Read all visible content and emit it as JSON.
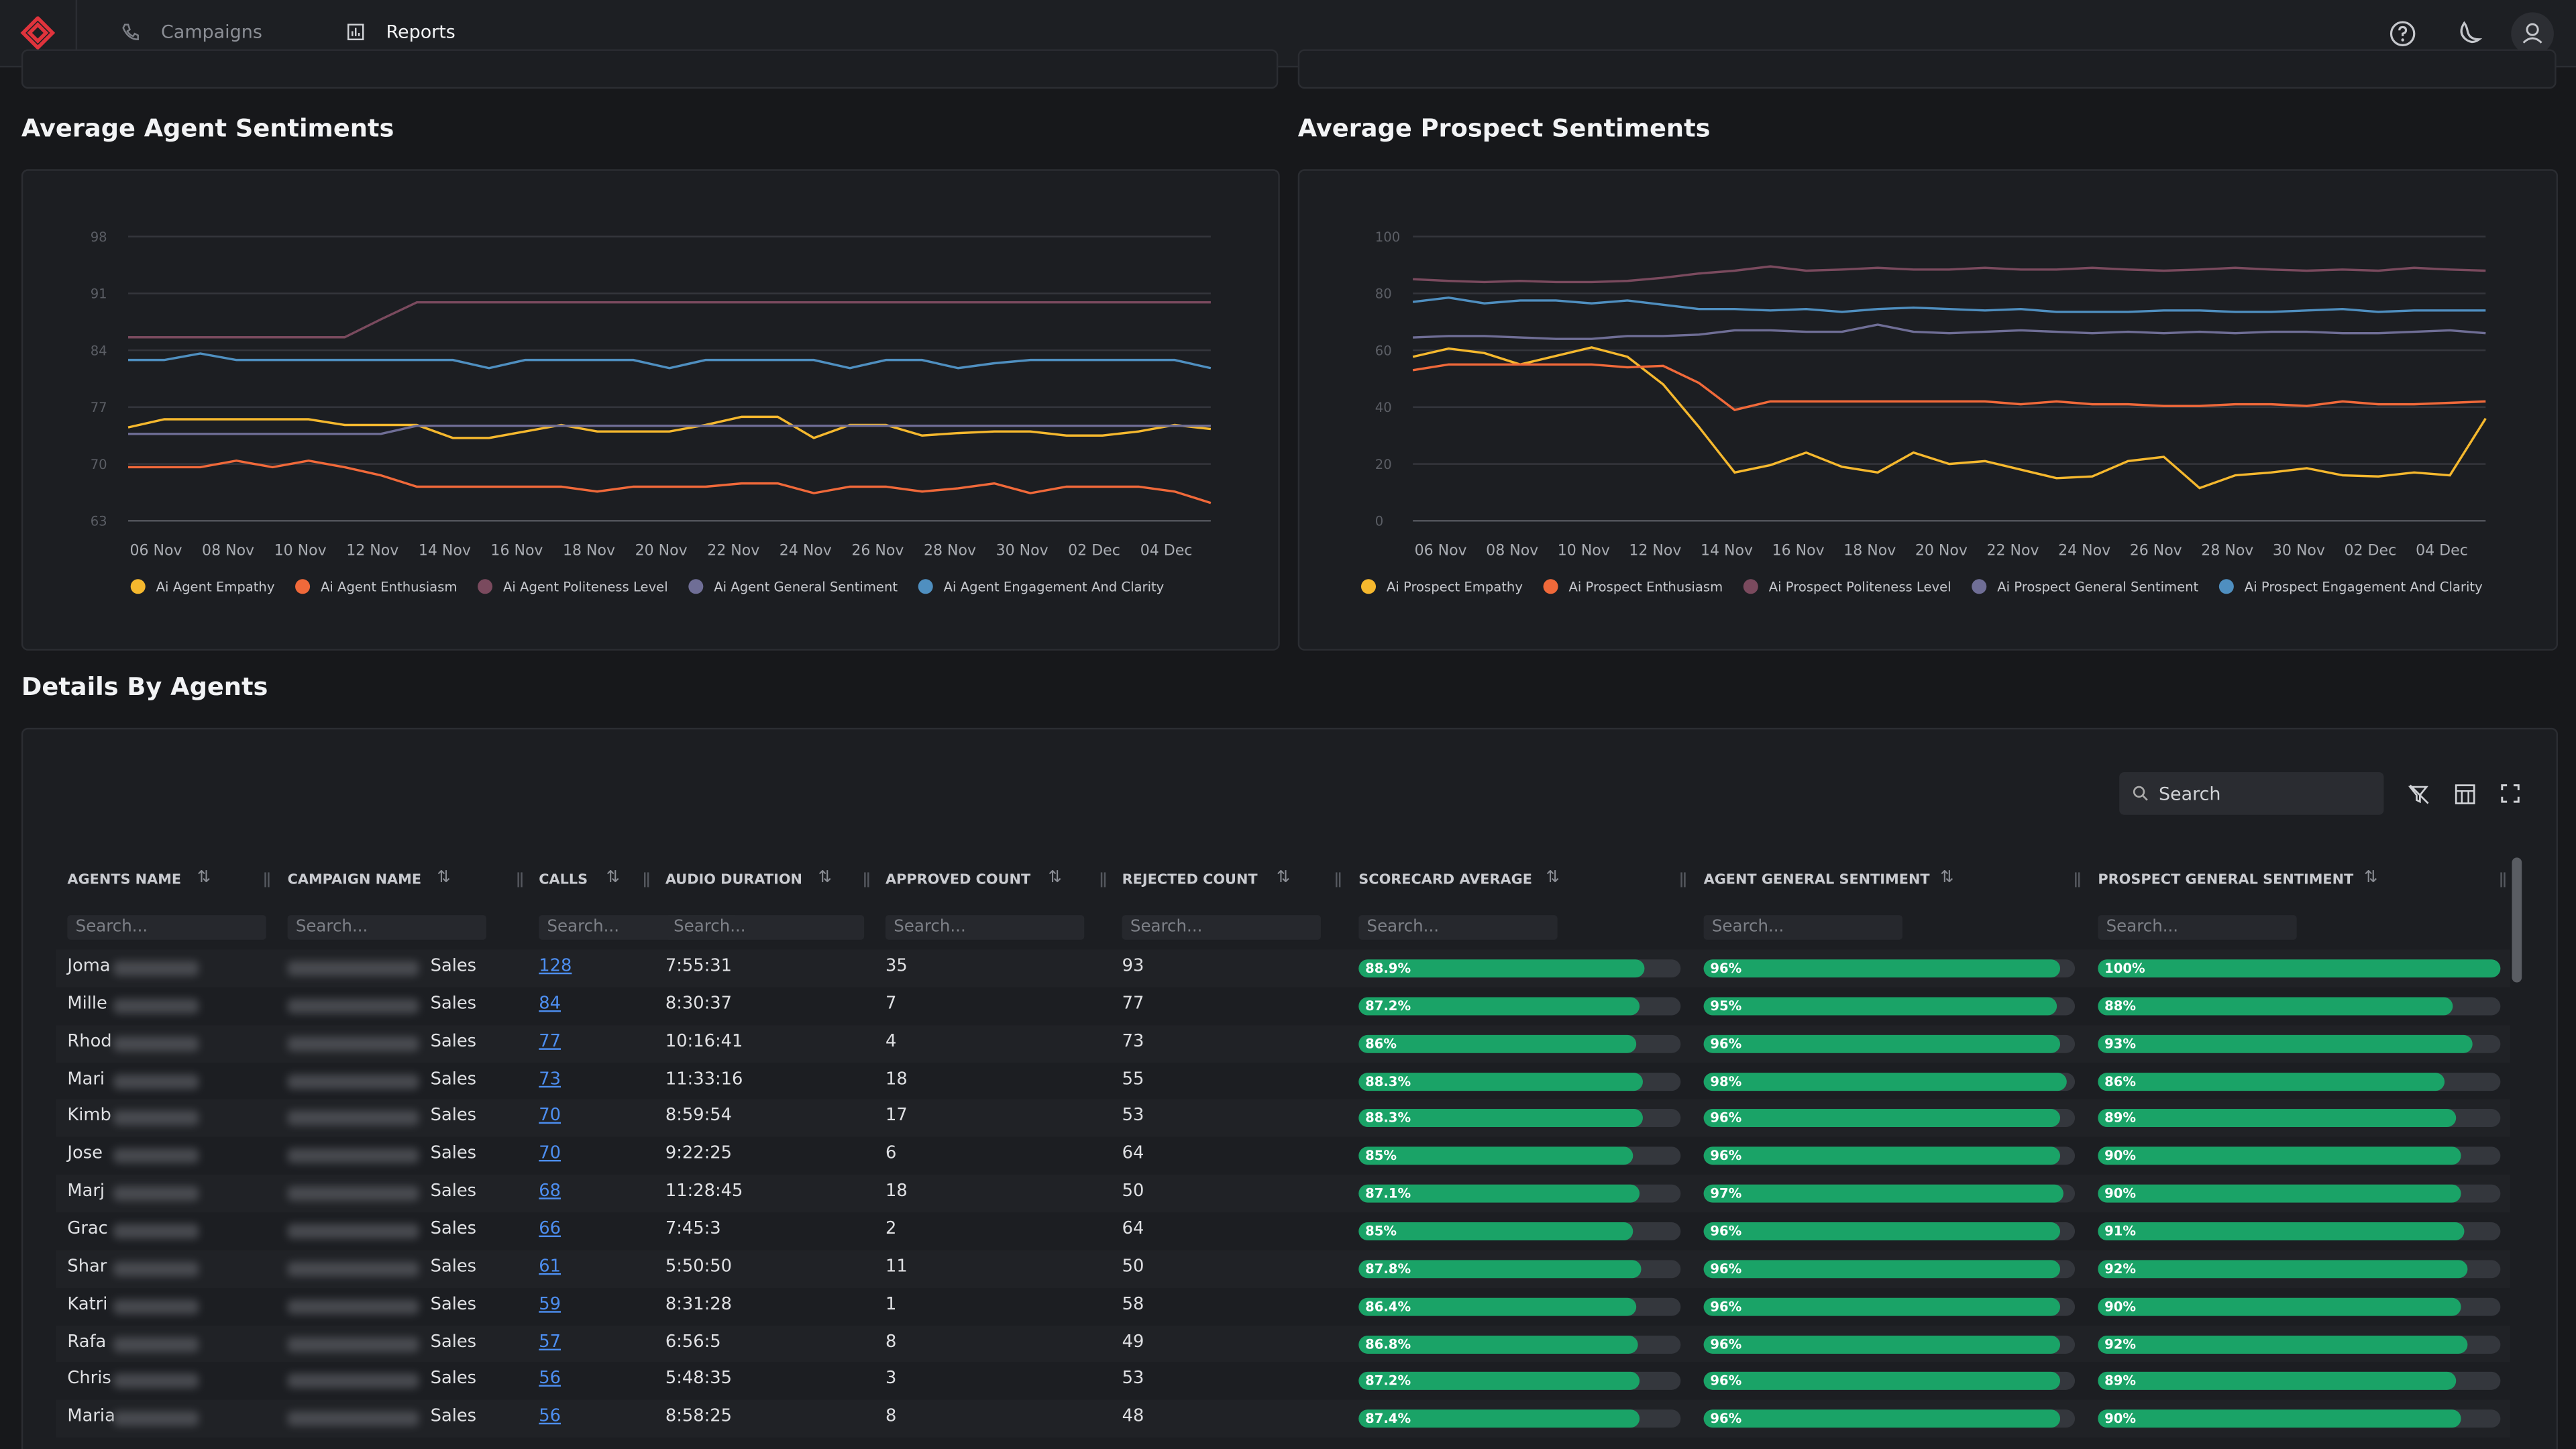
{
  "nav": {
    "items": [
      "Campaigns",
      "Reports"
    ]
  },
  "chart_data": [
    {
      "type": "line",
      "title": "Average Agent Sentiments",
      "categories": [
        "06 Nov",
        null,
        "08 Nov",
        null,
        "10 Nov",
        null,
        "12 Nov",
        null,
        "14 Nov",
        null,
        "16 Nov",
        null,
        "18 Nov",
        null,
        "20 Nov",
        null,
        "22 Nov",
        null,
        "24 Nov",
        null,
        "26 Nov",
        null,
        "28 Nov",
        null,
        "30 Nov",
        null,
        "02 Dec",
        null,
        "04 Dec",
        null,
        null
      ],
      "ylim": [
        63,
        98
      ],
      "yticks": [
        63,
        70,
        77,
        84,
        91,
        98
      ],
      "grid": true,
      "series": [
        {
          "name": "Ai Agent Empathy",
          "color": "#f5b82e",
          "values": [
            74.5,
            75.5,
            75.5,
            75.5,
            75.5,
            75.5,
            74.8,
            74.8,
            74.8,
            73.2,
            73.2,
            74,
            74.8,
            74,
            74,
            74,
            74.8,
            75.8,
            75.8,
            73.2,
            74.8,
            74.8,
            73.5,
            73.8,
            74,
            74,
            73.5,
            73.5,
            74,
            74.8,
            74.3
          ]
        },
        {
          "name": "Ai Agent Enthusiasm",
          "color": "#f0693a",
          "values": [
            69.6,
            69.6,
            69.6,
            70.4,
            69.6,
            70.4,
            69.6,
            68.6,
            67.2,
            67.2,
            67.2,
            67.2,
            67.2,
            66.6,
            67.2,
            67.2,
            67.2,
            67.6,
            67.6,
            66.4,
            67.2,
            67.2,
            66.6,
            67,
            67.6,
            66.4,
            67.2,
            67.2,
            67.2,
            66.6,
            65.2
          ]
        },
        {
          "name": "Ai Agent Politeness Level",
          "color": "#7a4a5e",
          "values": [
            85.6,
            85.6,
            85.6,
            85.6,
            85.6,
            85.6,
            85.6,
            87.8,
            89.9,
            89.9,
            89.9,
            89.9,
            89.9,
            89.9,
            89.9,
            89.9,
            89.9,
            89.9,
            89.9,
            89.9,
            89.9,
            89.9,
            89.9,
            89.9,
            89.9,
            89.9,
            89.9,
            89.9,
            89.9,
            89.9,
            89.9
          ]
        },
        {
          "name": "Ai Agent General Sentiment",
          "color": "#6f6e96",
          "values": [
            73.7,
            73.7,
            73.7,
            73.7,
            73.7,
            73.7,
            73.7,
            73.7,
            74.7,
            74.7,
            74.7,
            74.7,
            74.7,
            74.7,
            74.7,
            74.7,
            74.7,
            74.7,
            74.7,
            74.7,
            74.7,
            74.7,
            74.7,
            74.7,
            74.7,
            74.7,
            74.7,
            74.7,
            74.7,
            74.7,
            74.7
          ]
        },
        {
          "name": "Ai Agent Engagement And Clarity",
          "color": "#4f8fc0",
          "values": [
            82.8,
            82.8,
            83.6,
            82.8,
            82.8,
            82.8,
            82.8,
            82.8,
            82.8,
            82.8,
            81.8,
            82.8,
            82.8,
            82.8,
            82.8,
            81.8,
            82.8,
            82.8,
            82.8,
            82.8,
            81.8,
            82.8,
            82.8,
            81.8,
            82.4,
            82.8,
            82.8,
            82.8,
            82.8,
            82.8,
            81.8
          ]
        }
      ]
    },
    {
      "type": "line",
      "title": "Average Prospect Sentiments",
      "categories": [
        "06 Nov",
        null,
        "08 Nov",
        null,
        "10 Nov",
        null,
        "12 Nov",
        null,
        "14 Nov",
        null,
        "16 Nov",
        null,
        "18 Nov",
        null,
        "20 Nov",
        null,
        "22 Nov",
        null,
        "24 Nov",
        null,
        "26 Nov",
        null,
        "28 Nov",
        null,
        "30 Nov",
        null,
        "02 Dec",
        null,
        "04 Dec",
        null,
        null
      ],
      "ylim": [
        0,
        100
      ],
      "yticks": [
        0,
        20,
        40,
        60,
        80,
        100
      ],
      "grid": true,
      "series": [
        {
          "name": "Ai Prospect Empathy",
          "color": "#f5b82e",
          "values": [
            57.7,
            60.6,
            59,
            55,
            58,
            61,
            57.7,
            48,
            33,
            17,
            19.6,
            24,
            19,
            17,
            24,
            20,
            21,
            18,
            15,
            15.6,
            21,
            22.5,
            11.5,
            16,
            17,
            18.5,
            16,
            15.6,
            17,
            16,
            36
          ]
        },
        {
          "name": "Ai Prospect Enthusiasm",
          "color": "#f0693a",
          "values": [
            53,
            55,
            55,
            55,
            55,
            55,
            54,
            54.5,
            48.5,
            39,
            42,
            42,
            42,
            42,
            42,
            42,
            42,
            41,
            42,
            41,
            41,
            40.4,
            40.4,
            41,
            41,
            40.4,
            42,
            41,
            41,
            41.5,
            42
          ]
        },
        {
          "name": "Ai Prospect Politeness Level",
          "color": "#7a4a5e",
          "values": [
            85,
            84.4,
            84,
            84.4,
            84,
            84,
            84.4,
            85.5,
            87,
            88,
            89.5,
            88,
            88.4,
            89,
            88.4,
            88.4,
            89,
            88.4,
            88.4,
            89,
            88.4,
            88,
            88.4,
            89,
            88.4,
            88,
            88.4,
            88,
            89,
            88.4,
            88
          ]
        },
        {
          "name": "Ai Prospect General Sentiment",
          "color": "#6f6e96",
          "values": [
            64.5,
            65,
            65,
            64.5,
            64,
            64,
            65,
            65,
            65.5,
            67,
            67,
            66.5,
            66.5,
            69,
            66.5,
            66,
            66.5,
            67,
            66.5,
            66,
            66.5,
            66,
            66.5,
            66,
            66.5,
            66.5,
            66,
            66,
            66.5,
            67,
            66
          ]
        },
        {
          "name": "Ai Prospect Engagement And Clarity",
          "color": "#4f8fc0",
          "values": [
            77,
            78.5,
            76.5,
            77.5,
            77.5,
            76.5,
            77.5,
            76,
            74.5,
            74.5,
            74,
            74.5,
            73.5,
            74.5,
            75,
            74.5,
            74,
            74.5,
            73.5,
            73.5,
            73.5,
            74,
            74,
            73.5,
            73.5,
            74,
            74.5,
            73.5,
            74,
            74,
            74
          ]
        }
      ]
    }
  ],
  "table": {
    "title": "Details By Agents",
    "search": "Search",
    "filter_placeholder": "Search...",
    "columns": [
      "AGENTS NAME",
      "CAMPAIGN NAME",
      "CALLS",
      "AUDIO DURATION",
      "APPROVED COUNT",
      "REJECTED COUNT",
      "SCORECARD AVERAGE",
      "AGENT GENERAL SENTIMENT",
      "PROSPECT GENERAL SENTIMENT"
    ],
    "rows": [
      [
        "Joma",
        "Sales",
        128,
        "7:55:31",
        35,
        93,
        88.9,
        96,
        100
      ],
      [
        "Mille",
        "Sales",
        84,
        "8:30:37",
        7,
        77,
        87.2,
        95,
        88
      ],
      [
        "Rhod",
        "Sales",
        77,
        "10:16:41",
        4,
        73,
        86,
        96,
        93
      ],
      [
        "Mari",
        "Sales",
        73,
        "11:33:16",
        18,
        55,
        88.3,
        98,
        86
      ],
      [
        "Kimb",
        "Sales",
        70,
        "8:59:54",
        17,
        53,
        88.3,
        96,
        89
      ],
      [
        "Jose",
        "Sales",
        70,
        "9:22:25",
        6,
        64,
        85,
        96,
        90
      ],
      [
        "Marj",
        "Sales",
        68,
        "11:28:45",
        18,
        50,
        87.1,
        97,
        90
      ],
      [
        "Grac",
        "Sales",
        66,
        "7:45:3",
        2,
        64,
        85,
        96,
        91
      ],
      [
        "Shar",
        "Sales",
        61,
        "5:50:50",
        11,
        50,
        87.8,
        96,
        92
      ],
      [
        "Katri",
        "Sales",
        59,
        "8:31:28",
        1,
        58,
        86.4,
        96,
        90
      ],
      [
        "Rafa",
        "Sales",
        57,
        "6:56:5",
        8,
        49,
        86.8,
        96,
        92
      ],
      [
        "Chris",
        "Sales",
        56,
        "5:48:35",
        3,
        53,
        87.2,
        96,
        89
      ],
      [
        "Maria",
        "Sales",
        56,
        "8:58:25",
        8,
        48,
        87.4,
        96,
        90
      ]
    ],
    "value_labels": [
      [
        "88.9%",
        "96%",
        "100%"
      ],
      [
        "87.2%",
        "95%",
        "88%"
      ],
      [
        "86%",
        "96%",
        "93%"
      ],
      [
        "88.3%",
        "98%",
        "86%"
      ],
      [
        "88.3%",
        "96%",
        "89%"
      ],
      [
        "85%",
        "96%",
        "90%"
      ],
      [
        "87.1%",
        "97%",
        "90%"
      ],
      [
        "85%",
        "96%",
        "91%"
      ],
      [
        "87.8%",
        "96%",
        "92%"
      ],
      [
        "86.4%",
        "96%",
        "90%"
      ],
      [
        "86.8%",
        "96%",
        "92%"
      ],
      [
        "87.2%",
        "96%",
        "89%"
      ],
      [
        "87.4%",
        "96%",
        "90%"
      ]
    ]
  }
}
